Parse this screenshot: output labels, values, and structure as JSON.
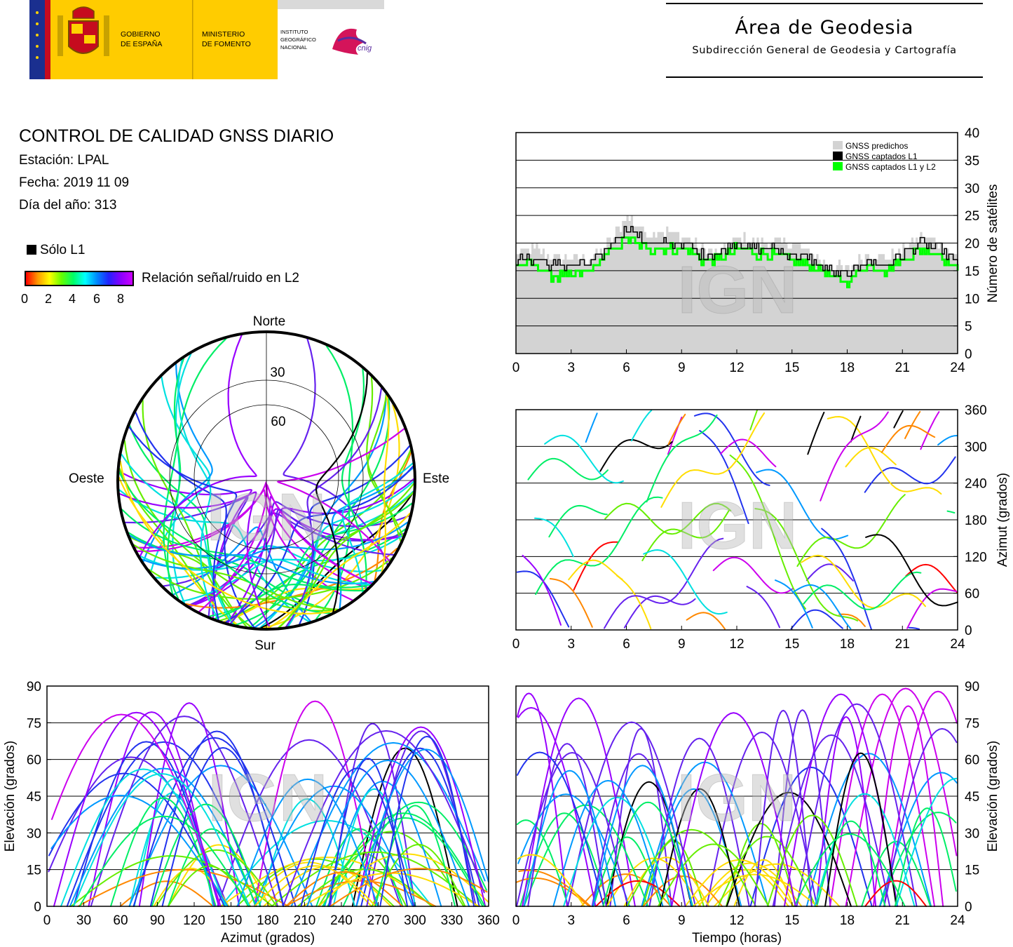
{
  "header": {
    "gov_line1": "GOBIERNO",
    "gov_line2": "DE ESPAÑA",
    "min_line1": "MINISTERIO",
    "min_line2": "DE FOMENTO",
    "inst_line1": "INSTITUTO",
    "inst_line2": "GEOGRÁFICO",
    "inst_line3": "NACIONAL",
    "cnig": "cnig",
    "area_title": "Área de Geodesia",
    "area_subtitle": "Subdirección General de Geodesia y Cartografía"
  },
  "report": {
    "title": "CONTROL DE CALIDAD GNSS DIARIO",
    "station": "Estación: LPAL",
    "date": "Fecha: 2019 11 09",
    "doy": "Día del año: 313"
  },
  "legend": {
    "l1_only": "Sólo L1",
    "snr_label": "Relación señal/ruido en L2",
    "snr_ticks": [
      "0",
      "2",
      "4",
      "6",
      "8"
    ],
    "colors": {
      "l1_only": "#000000",
      "predicted": "#d3d3d3",
      "l1": "#000000",
      "l1l2": "#00ff00"
    }
  },
  "watermark": "IGN",
  "chart_data": [
    {
      "id": "sat-count",
      "type": "area",
      "xlabel": "",
      "ylabel": "Número de satélites",
      "xlim": [
        0,
        24
      ],
      "ylim": [
        0,
        40
      ],
      "xticks": [
        "0",
        "3",
        "6",
        "9",
        "12",
        "15",
        "18",
        "21",
        "24"
      ],
      "yticks": [
        "0",
        "5",
        "10",
        "15",
        "20",
        "25",
        "30",
        "35",
        "40"
      ],
      "grid": true,
      "legend_position": "top-right",
      "x": [
        0,
        1,
        2,
        3,
        4,
        5,
        6,
        7,
        8,
        9,
        10,
        11,
        12,
        13,
        14,
        15,
        16,
        17,
        18,
        19,
        20,
        21,
        22,
        23,
        24
      ],
      "series": [
        {
          "name": "GNSS predichos",
          "color": "#d3d3d3",
          "values": [
            18,
            19,
            17,
            17,
            17,
            20,
            25,
            22,
            22,
            21,
            19,
            18,
            21,
            20,
            20,
            20,
            18,
            16,
            15,
            18,
            17,
            19,
            21,
            20,
            17
          ]
        },
        {
          "name": "GNSS captados L1",
          "color": "#000000",
          "values": [
            17,
            17,
            16,
            16,
            16,
            19,
            23,
            20,
            20,
            20,
            18,
            18,
            20,
            19,
            19,
            18,
            17,
            15,
            14,
            17,
            16,
            18,
            20,
            19,
            16
          ]
        },
        {
          "name": "GNSS captados L1 y L2",
          "color": "#00ff00",
          "values": [
            16,
            16,
            14,
            14,
            15,
            18,
            21,
            19,
            19,
            19,
            17,
            17,
            19,
            18,
            18,
            17,
            16,
            14,
            13,
            16,
            15,
            17,
            19,
            18,
            15
          ]
        }
      ]
    },
    {
      "id": "skyplot",
      "type": "scatter",
      "projection": "polar",
      "direction_labels": {
        "n": "Norte",
        "s": "Sur",
        "e": "Este",
        "w": "Oeste"
      },
      "ring_labels": [
        "30",
        "60"
      ],
      "color_by": "SNR L2 (0-8)"
    },
    {
      "id": "azimuth-time",
      "type": "scatter",
      "xlabel": "",
      "ylabel": "Azimut (grados)",
      "xlim": [
        0,
        24
      ],
      "ylim": [
        0,
        360
      ],
      "xticks": [
        "0",
        "3",
        "6",
        "9",
        "12",
        "15",
        "18",
        "21",
        "24"
      ],
      "yticks": [
        "0",
        "60",
        "120",
        "180",
        "240",
        "300",
        "360"
      ],
      "grid": true
    },
    {
      "id": "elev-azimuth",
      "type": "scatter",
      "xlabel": "Azimut (grados)",
      "ylabel": "Elevación (grados)",
      "xlim": [
        0,
        360
      ],
      "ylim": [
        0,
        90
      ],
      "xticks": [
        "0",
        "30",
        "60",
        "90",
        "120",
        "150",
        "180",
        "210",
        "240",
        "270",
        "300",
        "330",
        "360"
      ],
      "yticks": [
        "0",
        "15",
        "30",
        "45",
        "60",
        "75",
        "90"
      ],
      "grid": true
    },
    {
      "id": "elev-time",
      "type": "scatter",
      "xlabel": "Tiempo (horas)",
      "ylabel": "Elevación (grados)",
      "xlim": [
        0,
        24
      ],
      "ylim": [
        0,
        90
      ],
      "xticks": [
        "0",
        "3",
        "6",
        "9",
        "12",
        "15",
        "18",
        "21",
        "24"
      ],
      "yticks": [
        "0",
        "15",
        "30",
        "45",
        "60",
        "75",
        "90"
      ],
      "grid": true
    }
  ]
}
